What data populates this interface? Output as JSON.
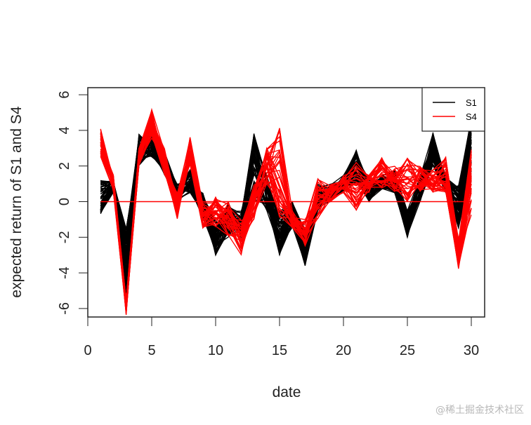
{
  "chart_data": {
    "type": "line",
    "xlabel": "date",
    "ylabel": "expected return of S1 and S4",
    "xlim": [
      0,
      30
    ],
    "ylim": [
      -6,
      6
    ],
    "xticks": [
      0,
      5,
      10,
      15,
      20,
      25,
      30
    ],
    "yticks": [
      -6,
      -4,
      -2,
      0,
      2,
      4,
      6
    ],
    "grid": false,
    "legend": {
      "placement": "top-right",
      "entries": [
        {
          "name": "S1",
          "color": "#000000"
        },
        {
          "name": "S4",
          "color": "#ff0000"
        }
      ]
    },
    "x": [
      1,
      2,
      3,
      4,
      5,
      6,
      7,
      8,
      9,
      10,
      11,
      12,
      13,
      14,
      15,
      16,
      17,
      18,
      19,
      20,
      21,
      22,
      23,
      24,
      25,
      26,
      27,
      28,
      29,
      30
    ],
    "series": [
      {
        "name": "S1",
        "color": "#000000",
        "low": [
          -0.7,
          0.5,
          -5.5,
          2.0,
          2.5,
          1.5,
          0.0,
          0.5,
          -1.0,
          -3.0,
          -2.0,
          -2.0,
          0.0,
          -0.5,
          -3.0,
          -1.5,
          -3.6,
          -0.5,
          0.0,
          0.5,
          1.0,
          0.0,
          0.7,
          0.5,
          -2.0,
          0.0,
          2.0,
          0.5,
          -1.5,
          1.0
        ],
        "high": [
          1.2,
          1.3,
          -1.5,
          3.8,
          3.8,
          2.8,
          1.0,
          1.8,
          0.5,
          -1.0,
          0.0,
          -0.5,
          3.9,
          1.5,
          -0.5,
          0.0,
          -1.5,
          1.0,
          1.0,
          1.5,
          2.9,
          1.3,
          1.5,
          1.8,
          -0.5,
          1.5,
          3.9,
          1.5,
          1.0,
          4.8
        ]
      },
      {
        "name": "S4",
        "color": "#ff0000",
        "low": [
          2.5,
          0.5,
          -6.5,
          2.0,
          3.5,
          1.5,
          -1.0,
          2.0,
          -1.5,
          -1.5,
          -2.0,
          -3.0,
          -1.0,
          1.0,
          -1.0,
          -1.5,
          -2.5,
          -1.0,
          0.0,
          0.5,
          -0.5,
          0.5,
          0.5,
          0.5,
          0.0,
          0.5,
          0.5,
          0.5,
          -3.8,
          -1.0
        ],
        "high": [
          4.1,
          1.5,
          -5.5,
          3.0,
          5.2,
          3.0,
          0.5,
          3.7,
          0.0,
          0.3,
          0.0,
          -1.0,
          1.0,
          3.0,
          4.4,
          -0.5,
          -1.0,
          1.3,
          1.0,
          1.5,
          2.5,
          1.5,
          2.5,
          2.0,
          2.5,
          2.0,
          1.8,
          2.5,
          -2.0,
          3.0
        ]
      }
    ],
    "reference_line": {
      "y": 0,
      "x_from": 1,
      "x_to": 30,
      "color": "#ff0000"
    }
  },
  "watermark": "@稀土掘金技术社区"
}
